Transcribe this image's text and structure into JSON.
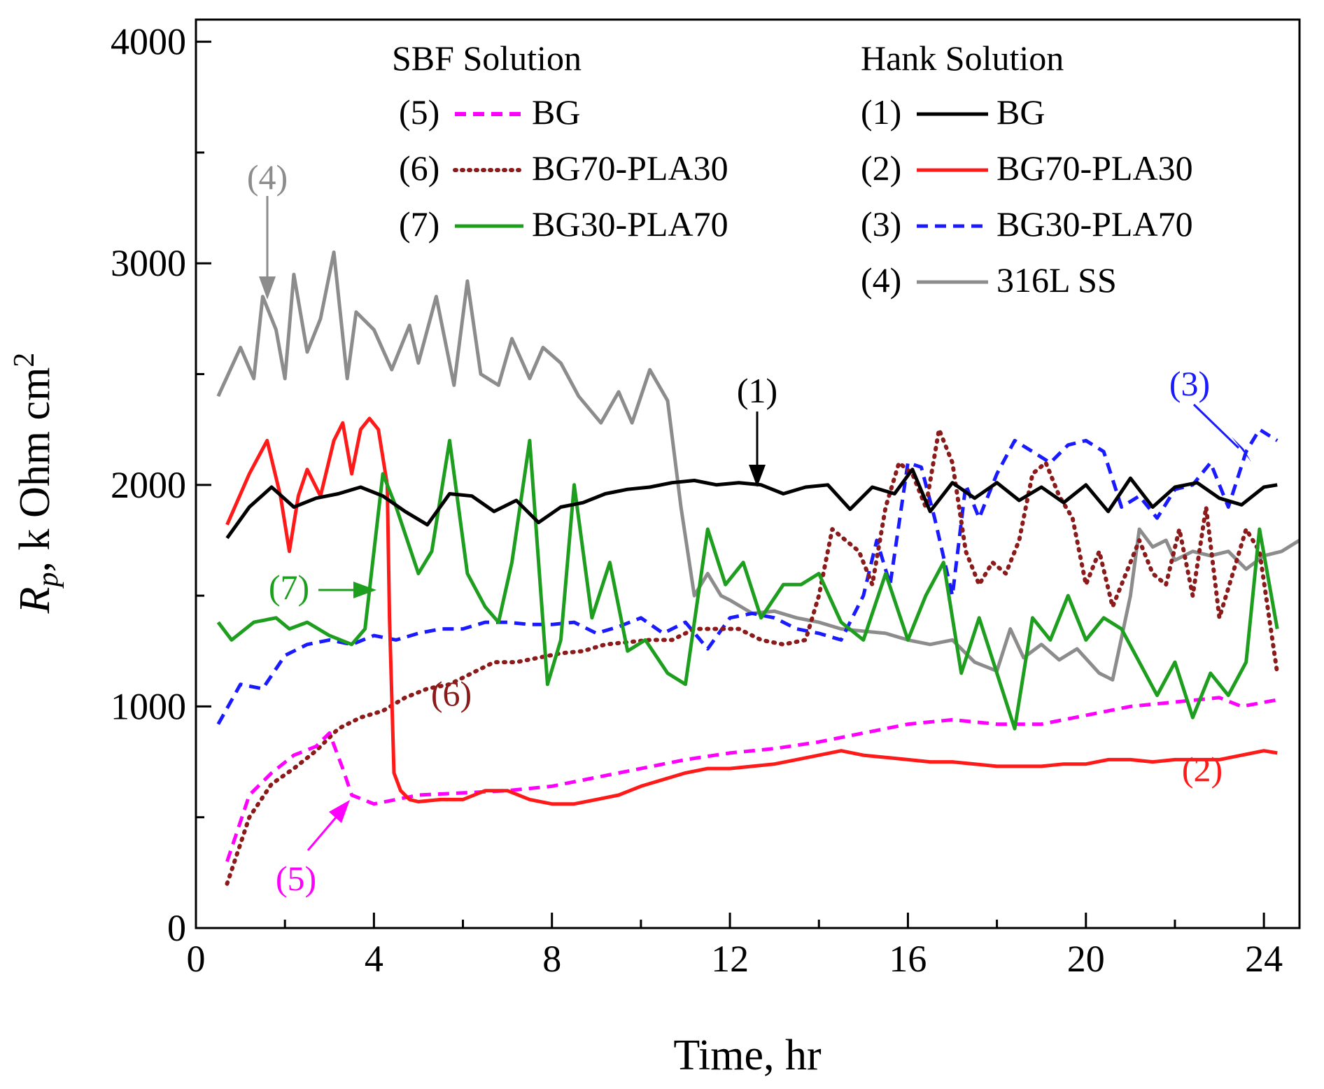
{
  "chart_data": {
    "type": "line",
    "xlabel": "Time, hr",
    "ylabel_main": "R",
    "ylabel_sub": "p",
    "ylabel_rest": ", k Ohm cm",
    "ylabel_sup": "2",
    "xlim": [
      0,
      24.8
    ],
    "ylim": [
      0,
      4100
    ],
    "xticks": [
      0,
      4,
      8,
      12,
      16,
      20,
      24
    ],
    "xtick_labels": [
      "0",
      "4",
      "8",
      "12",
      "16",
      "20",
      "24"
    ],
    "yticks": [
      0,
      1000,
      2000,
      3000,
      4000
    ],
    "ytick_labels": [
      "0",
      "1000",
      "2000",
      "3000",
      "4000"
    ],
    "legend_groups": [
      {
        "title": "SBF Solution",
        "entries": [
          {
            "tag": "(5)",
            "label": "BG",
            "color": "#ff00ff",
            "dash": "dashed",
            "tag_color": "#ff00ff"
          },
          {
            "tag": "(6)",
            "label": "BG70-PLA30",
            "color": "#8b1a1a",
            "dash": "dotted",
            "tag_color": "#b8860b"
          },
          {
            "tag": "(7)",
            "label": "BG30-PLA70",
            "color": "#1e9e1e",
            "dash": "solid",
            "tag_color": "#1e9e1e"
          }
        ]
      },
      {
        "title": "Hank Solution",
        "entries": [
          {
            "tag": "(1)",
            "label": "BG",
            "color": "#000000",
            "dash": "solid",
            "tag_color": "#000000"
          },
          {
            "tag": "(2)",
            "label": "BG70-PLA30",
            "color": "#ff1a1a",
            "dash": "solid",
            "tag_color": "#ff1a1a"
          },
          {
            "tag": "(3)",
            "label": "BG30-PLA70",
            "color": "#1a1aff",
            "dash": "dashed",
            "tag_color": "#1a1aff"
          },
          {
            "tag": "(4)",
            "label": "316L SS",
            "color": "#8c8c8c",
            "dash": "solid",
            "tag_color": "#8c8c8c"
          }
        ]
      }
    ],
    "series": [
      {
        "id": "s4",
        "name": "(4) 316L SS - Hank",
        "color": "#8c8c8c",
        "dash": "solid",
        "x": [
          0.5,
          1,
          1.3,
          1.5,
          1.8,
          2,
          2.2,
          2.5,
          2.8,
          3.1,
          3.4,
          3.6,
          4,
          4.4,
          4.8,
          5,
          5.4,
          5.8,
          6.1,
          6.4,
          6.8,
          7.1,
          7.5,
          7.8,
          8.2,
          8.6,
          9.1,
          9.5,
          9.8,
          10.2,
          10.6,
          10.9,
          11.2,
          11.5,
          11.8,
          12,
          12.5,
          13,
          13.5,
          14,
          14.5,
          15,
          15.5,
          16,
          16.5,
          17,
          17.5,
          18,
          18.3,
          18.6,
          19,
          19.4,
          19.8,
          20.3,
          20.6,
          21,
          21.2,
          21.5,
          21.8,
          22,
          22.4,
          22.8,
          23.2,
          23.6,
          24,
          24.4,
          24.8
        ],
        "y": [
          2400,
          2620,
          2480,
          2850,
          2700,
          2480,
          2950,
          2600,
          2750,
          3050,
          2480,
          2780,
          2700,
          2520,
          2720,
          2550,
          2850,
          2450,
          2920,
          2500,
          2450,
          2660,
          2480,
          2620,
          2550,
          2400,
          2280,
          2420,
          2280,
          2520,
          2380,
          1900,
          1500,
          1600,
          1500,
          1480,
          1420,
          1430,
          1400,
          1380,
          1350,
          1340,
          1330,
          1300,
          1280,
          1300,
          1200,
          1160,
          1350,
          1220,
          1280,
          1210,
          1260,
          1150,
          1120,
          1500,
          1800,
          1720,
          1750,
          1660,
          1700,
          1680,
          1700,
          1620,
          1680,
          1700,
          1750
        ]
      },
      {
        "id": "s3",
        "name": "(3) BG30-PLA70 - Hank",
        "color": "#1a1aff",
        "dash": "dashed",
        "x": [
          0.5,
          1,
          1.5,
          2,
          2.5,
          3,
          3.5,
          4,
          4.5,
          5,
          5.5,
          6,
          6.5,
          7,
          7.5,
          8,
          8.5,
          9,
          9.5,
          10,
          10.5,
          11,
          11.5,
          12,
          12.5,
          13,
          13.5,
          14,
          14.5,
          15,
          15.3,
          15.6,
          16,
          16.3,
          16.6,
          17,
          17.3,
          17.6,
          18,
          18.4,
          18.8,
          19.2,
          19.6,
          20,
          20.4,
          20.8,
          21.2,
          21.6,
          22,
          22.4,
          22.8,
          23.2,
          23.6,
          23.9,
          24.3
        ],
        "y": [
          920,
          1100,
          1080,
          1230,
          1280,
          1300,
          1280,
          1320,
          1300,
          1330,
          1350,
          1350,
          1380,
          1380,
          1370,
          1370,
          1380,
          1330,
          1360,
          1400,
          1330,
          1380,
          1260,
          1400,
          1420,
          1400,
          1350,
          1330,
          1300,
          1500,
          1750,
          1550,
          2100,
          2080,
          1850,
          1500,
          2000,
          1850,
          2050,
          2200,
          2150,
          2100,
          2180,
          2200,
          2150,
          1900,
          1950,
          1850,
          1980,
          2000,
          2100,
          1900,
          2150,
          2250,
          2200
        ]
      },
      {
        "id": "s6",
        "name": "(6) BG70-PLA30 - SBF",
        "color": "#8b1a1a",
        "dash": "dotted",
        "x": [
          0.7,
          1.2,
          1.7,
          2.2,
          2.7,
          3.2,
          3.7,
          4.2,
          4.7,
          5.2,
          5.7,
          6.2,
          6.7,
          7.2,
          7.7,
          8.2,
          8.7,
          9.2,
          9.7,
          10.2,
          10.7,
          11.2,
          11.7,
          12.2,
          12.7,
          13.2,
          13.7,
          14,
          14.3,
          14.6,
          14.9,
          15.2,
          15.5,
          15.8,
          16.1,
          16.4,
          16.7,
          17,
          17.3,
          17.6,
          17.9,
          18.2,
          18.5,
          18.8,
          19.1,
          19.4,
          19.7,
          20,
          20.3,
          20.6,
          20.9,
          21.2,
          21.5,
          21.8,
          22.1,
          22.4,
          22.7,
          23,
          23.3,
          23.6,
          23.9,
          24.3
        ],
        "y": [
          200,
          500,
          650,
          720,
          800,
          900,
          950,
          980,
          1040,
          1080,
          1100,
          1150,
          1200,
          1200,
          1220,
          1240,
          1250,
          1280,
          1290,
          1300,
          1300,
          1350,
          1350,
          1350,
          1300,
          1280,
          1300,
          1500,
          1800,
          1750,
          1700,
          1550,
          1900,
          2100,
          2050,
          1900,
          2250,
          2100,
          1700,
          1550,
          1650,
          1600,
          1750,
          2050,
          2100,
          1950,
          1850,
          1550,
          1700,
          1450,
          1600,
          1750,
          1600,
          1550,
          1800,
          1500,
          1900,
          1400,
          1600,
          1800,
          1700,
          1150
        ]
      },
      {
        "id": "s5",
        "name": "(5) BG - SBF",
        "color": "#ff00ff",
        "dash": "dashed",
        "x": [
          0.7,
          1.2,
          1.7,
          2.2,
          2.7,
          3,
          3.3,
          3.5,
          4,
          4.5,
          5,
          6,
          7,
          8,
          9,
          10,
          11,
          12,
          13,
          14,
          15,
          16,
          17,
          18,
          19,
          20,
          21,
          22,
          23,
          23.5,
          24.3
        ],
        "y": [
          300,
          600,
          700,
          780,
          820,
          880,
          720,
          600,
          560,
          580,
          600,
          610,
          620,
          640,
          680,
          720,
          760,
          790,
          810,
          840,
          880,
          920,
          940,
          920,
          920,
          960,
          1000,
          1020,
          1040,
          1000,
          1030
        ]
      },
      {
        "id": "s2",
        "name": "(2) BG70-PLA30 - Hank",
        "color": "#ff1a1a",
        "dash": "solid",
        "x": [
          0.7,
          1.2,
          1.6,
          1.9,
          2.1,
          2.3,
          2.5,
          2.8,
          3.1,
          3.3,
          3.5,
          3.7,
          3.9,
          4.1,
          4.3,
          4.35,
          4.45,
          4.6,
          4.8,
          5,
          5.5,
          6,
          6.5,
          7,
          7.5,
          8,
          8.5,
          9,
          9.5,
          10,
          10.5,
          11,
          11.5,
          12,
          12.5,
          13,
          13.5,
          14,
          14.5,
          15,
          15.5,
          16,
          16.5,
          17,
          17.5,
          18,
          18.5,
          19,
          19.5,
          20,
          20.5,
          21,
          21.5,
          22,
          22.5,
          23,
          23.5,
          24,
          24.3
        ],
        "y": [
          1820,
          2050,
          2200,
          1950,
          1700,
          1950,
          2070,
          1950,
          2200,
          2280,
          2050,
          2250,
          2300,
          2250,
          2000,
          1400,
          700,
          620,
          580,
          570,
          580,
          580,
          620,
          620,
          580,
          560,
          560,
          580,
          600,
          640,
          670,
          700,
          720,
          720,
          730,
          740,
          760,
          780,
          800,
          780,
          770,
          760,
          750,
          750,
          740,
          730,
          730,
          730,
          740,
          740,
          760,
          760,
          750,
          760,
          760,
          760,
          780,
          800,
          790
        ]
      },
      {
        "id": "s7",
        "name": "(7) BG30-PLA70 - SBF",
        "color": "#1e9e1e",
        "dash": "solid",
        "x": [
          0.5,
          0.8,
          1.3,
          1.8,
          2.1,
          2.5,
          3,
          3.5,
          3.8,
          4.2,
          4.5,
          5,
          5.3,
          5.7,
          6.1,
          6.5,
          6.8,
          7.1,
          7.5,
          7.9,
          8.2,
          8.5,
          8.9,
          9.3,
          9.7,
          10.1,
          10.6,
          11,
          11.5,
          11.9,
          12.3,
          12.7,
          13.2,
          13.6,
          14,
          14.5,
          15,
          15.5,
          16,
          16.4,
          16.8,
          17.2,
          17.6,
          18,
          18.4,
          18.8,
          19.2,
          19.6,
          20,
          20.4,
          20.8,
          21.2,
          21.6,
          22,
          22.4,
          22.8,
          23.2,
          23.6,
          23.9,
          24.3
        ],
        "y": [
          1380,
          1300,
          1380,
          1400,
          1350,
          1380,
          1320,
          1280,
          1350,
          2050,
          1900,
          1600,
          1700,
          2200,
          1600,
          1450,
          1380,
          1650,
          2200,
          1100,
          1300,
          2000,
          1400,
          1650,
          1250,
          1300,
          1150,
          1100,
          1800,
          1550,
          1650,
          1400,
          1550,
          1550,
          1600,
          1380,
          1300,
          1600,
          1300,
          1500,
          1650,
          1150,
          1400,
          1150,
          900,
          1400,
          1300,
          1500,
          1300,
          1400,
          1350,
          1200,
          1050,
          1200,
          950,
          1150,
          1050,
          1200,
          1800,
          1350
        ]
      },
      {
        "id": "s1",
        "name": "(1) BG - Hank",
        "color": "#000000",
        "dash": "solid",
        "x": [
          0.7,
          1.2,
          1.7,
          2.2,
          2.7,
          3.2,
          3.7,
          4.2,
          4.7,
          5.2,
          5.7,
          6.2,
          6.7,
          7.2,
          7.7,
          8.2,
          8.7,
          9.2,
          9.7,
          10.2,
          10.7,
          11.2,
          11.7,
          12.2,
          12.7,
          13.2,
          13.7,
          14.2,
          14.7,
          15.2,
          15.7,
          16.1,
          16.5,
          17,
          17.5,
          18,
          18.5,
          19,
          19.5,
          20,
          20.5,
          21,
          21.5,
          22,
          22.5,
          23,
          23.5,
          24,
          24.3
        ],
        "y": [
          1760,
          1900,
          1990,
          1900,
          1940,
          1960,
          1990,
          1950,
          1880,
          1820,
          1960,
          1950,
          1880,
          1930,
          1830,
          1900,
          1920,
          1960,
          1980,
          1990,
          2010,
          2020,
          2000,
          2010,
          2000,
          1960,
          1990,
          2000,
          1890,
          1990,
          1960,
          2070,
          1880,
          2010,
          1940,
          2010,
          1930,
          1990,
          1920,
          2000,
          1880,
          2030,
          1900,
          1990,
          2010,
          1940,
          1910,
          1990,
          2000
        ]
      }
    ],
    "annotations": [
      {
        "id": "a4",
        "label": "(4)",
        "color": "#8c8c8c"
      },
      {
        "id": "a1",
        "label": "(1)",
        "color": "#000000"
      },
      {
        "id": "a3",
        "label": "(3)",
        "color": "#1a1aff"
      },
      {
        "id": "a7",
        "label": "(7)",
        "color": "#1e9e1e"
      },
      {
        "id": "a6",
        "label": "(6)",
        "color": "#8b1a1a"
      },
      {
        "id": "a5",
        "label": "(5)",
        "color": "#ff00ff"
      },
      {
        "id": "a2",
        "label": "(2)",
        "color": "#ff1a1a"
      }
    ]
  }
}
